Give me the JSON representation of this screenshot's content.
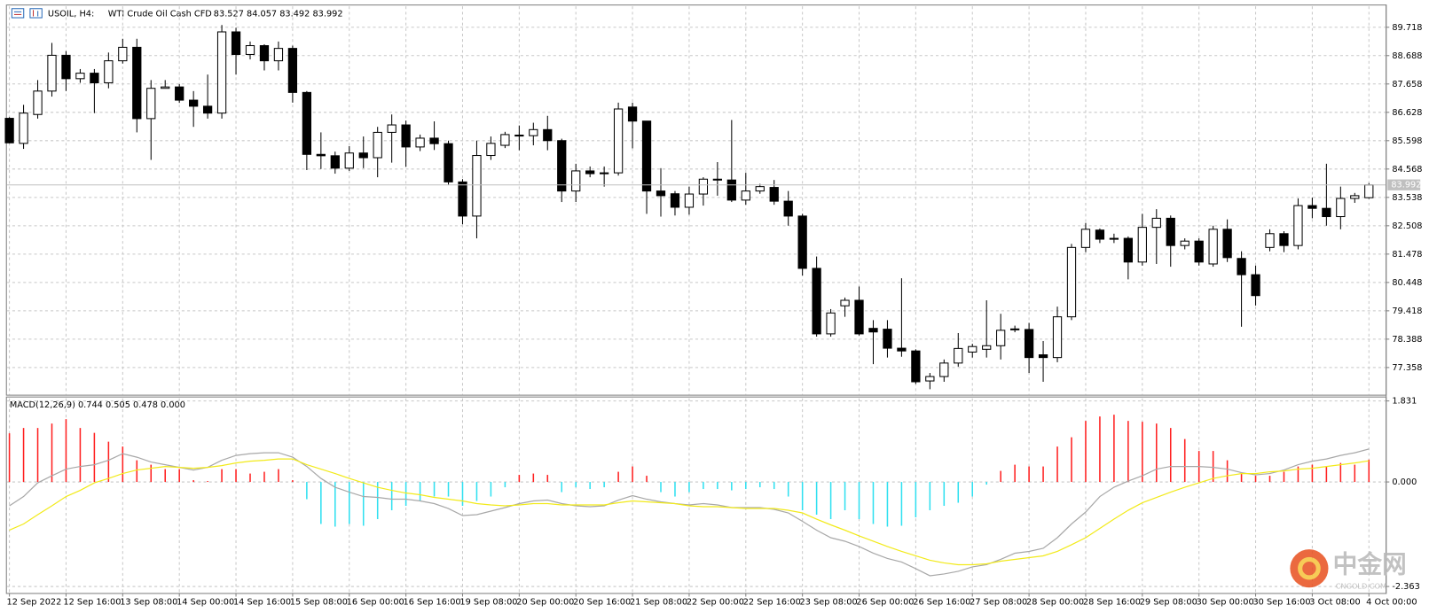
{
  "chart_data": [
    {
      "type": "candlestick",
      "title": "USOIL, H4:",
      "subtitle": "WTI Crude Oil Cash CFD",
      "ohlc_text": "83.527 84.057 83.492 83.992",
      "categories": [
        "12 Sep 2022",
        null,
        null,
        null,
        "12 Sep 16:00",
        null,
        null,
        null,
        "13 Sep 08:00",
        null,
        null,
        null,
        "14 Sep 00:00",
        null,
        null,
        null,
        "14 Sep 16:00",
        null,
        null,
        null,
        "15 Sep 08:00",
        null,
        null,
        null,
        "16 Sep 00:00",
        null,
        null,
        null,
        "16 Sep 16:00",
        null,
        null,
        null,
        "19 Sep 08:00",
        null,
        null,
        null,
        "20 Sep 00:00",
        null,
        null,
        null,
        "20 Sep 16:00",
        null,
        null,
        null,
        "21 Sep 08:00",
        null,
        null,
        null,
        "22 Sep 00:00",
        null,
        null,
        null,
        "22 Sep 16:00",
        null,
        null,
        null,
        "23 Sep 08:00",
        null,
        null,
        null,
        "26 Sep 00:00",
        null,
        null,
        null,
        "26 Sep 16:00",
        null,
        null,
        null,
        "27 Sep 08:00",
        null,
        null,
        null,
        "28 Sep 00:00",
        null,
        null,
        null,
        "28 Sep 16:00",
        null,
        null,
        null,
        "29 Sep 08:00",
        null,
        null,
        null,
        "30 Sep 00:00",
        null,
        null,
        null,
        "30 Sep 16:00",
        null,
        null,
        null,
        "3 Oct 08:00",
        null,
        null,
        null,
        "4 Oct 00:00"
      ],
      "open": [
        86.41,
        85.5,
        86.55,
        87.4,
        88.7,
        87.85,
        88.05,
        87.7,
        88.5,
        88.99,
        86.4,
        87.5,
        87.55,
        87.07,
        86.85,
        86.6,
        89.55,
        88.73,
        89.05,
        88.5,
        88.95,
        87.35,
        85.1,
        85.05,
        84.6,
        85.15,
        84.98,
        85.9,
        86.17,
        85.37,
        85.69,
        85.49,
        84.1,
        82.86,
        85.06,
        85.43,
        85.8,
        85.78,
        86.0,
        85.6,
        83.77,
        84.5,
        84.4,
        84.43,
        86.82,
        86.31,
        83.77,
        83.67,
        83.18,
        83.66,
        84.2,
        84.17,
        83.44,
        83.77,
        83.9,
        83.4,
        82.86,
        80.96,
        78.58,
        79.6,
        79.8,
        78.78,
        78.75,
        78.06,
        77.96,
        76.87,
        77.03,
        77.52,
        77.92,
        78.02,
        78.15,
        78.74,
        78.74,
        77.82,
        77.72,
        79.2,
        81.72,
        82.35,
        82.05,
        82.05,
        81.19,
        82.45,
        82.78,
        81.79,
        81.95,
        81.12,
        82.38,
        81.32,
        80.73,
        81.72,
        82.22,
        81.79,
        83.24,
        83.14,
        82.84,
        83.5,
        83.527
      ],
      "high": [
        86.45,
        86.9,
        87.8,
        89.15,
        88.85,
        88.2,
        88.2,
        88.8,
        89.3,
        89.3,
        87.8,
        87.8,
        87.65,
        87.4,
        88.0,
        89.8,
        89.7,
        89.2,
        89.1,
        89.2,
        89.05,
        87.4,
        85.9,
        85.2,
        85.4,
        85.75,
        86.1,
        86.55,
        86.33,
        85.82,
        86.3,
        85.6,
        84.2,
        85.6,
        85.75,
        85.92,
        86.15,
        86.25,
        86.5,
        85.67,
        84.76,
        84.66,
        84.66,
        86.98,
        86.98,
        86.31,
        84.6,
        83.77,
        83.93,
        84.27,
        84.82,
        86.35,
        84.43,
        84.03,
        84.17,
        83.77,
        82.94,
        81.39,
        79.48,
        79.9,
        80.3,
        79.08,
        79.08,
        80.6,
        78.02,
        77.16,
        77.65,
        78.61,
        78.22,
        79.8,
        79.31,
        78.88,
        78.98,
        78.32,
        79.57,
        81.85,
        82.61,
        82.41,
        82.22,
        82.12,
        82.94,
        83.11,
        82.88,
        82.05,
        82.05,
        82.51,
        82.74,
        81.58,
        81.06,
        82.38,
        82.31,
        83.5,
        83.53,
        84.76,
        83.93,
        83.7,
        84.057
      ],
      "low": [
        85.5,
        85.3,
        86.4,
        87.2,
        87.4,
        87.7,
        86.6,
        87.5,
        88.4,
        85.9,
        84.9,
        87.5,
        86.97,
        86.1,
        86.4,
        86.4,
        88.0,
        88.55,
        88.15,
        88.15,
        86.98,
        84.53,
        84.57,
        84.4,
        84.5,
        84.6,
        84.27,
        84.8,
        84.65,
        85.22,
        85.26,
        84.0,
        82.56,
        82.05,
        84.9,
        85.33,
        85.25,
        85.43,
        85.25,
        83.37,
        83.37,
        84.27,
        83.93,
        84.33,
        85.32,
        82.94,
        82.84,
        82.88,
        82.91,
        83.24,
        83.6,
        83.37,
        83.27,
        83.67,
        83.27,
        82.51,
        80.7,
        78.48,
        78.48,
        79.2,
        78.52,
        77.48,
        77.72,
        77.75,
        76.76,
        76.57,
        76.84,
        77.39,
        77.72,
        77.72,
        77.65,
        78.64,
        77.16,
        76.84,
        77.55,
        79.08,
        81.55,
        81.88,
        81.88,
        80.56,
        81.06,
        81.12,
        81.02,
        81.65,
        81.06,
        81.02,
        81.19,
        78.84,
        79.61,
        81.58,
        81.55,
        81.65,
        82.78,
        82.51,
        82.38,
        83.34,
        83.492
      ],
      "close": [
        85.52,
        86.6,
        87.4,
        88.7,
        87.85,
        88.05,
        87.7,
        88.5,
        88.99,
        86.4,
        87.5,
        87.55,
        87.07,
        86.85,
        86.6,
        89.55,
        88.73,
        89.05,
        88.5,
        88.95,
        87.35,
        85.1,
        85.05,
        84.6,
        85.15,
        84.98,
        85.9,
        86.17,
        85.37,
        85.69,
        85.49,
        84.1,
        82.86,
        85.06,
        85.5,
        85.82,
        85.78,
        86.0,
        85.6,
        83.77,
        84.5,
        84.4,
        84.43,
        86.75,
        86.31,
        83.77,
        83.6,
        83.18,
        83.66,
        84.2,
        84.17,
        83.44,
        83.77,
        83.93,
        83.4,
        82.86,
        80.96,
        78.58,
        79.34,
        79.8,
        78.58,
        78.65,
        78.06,
        77.96,
        76.84,
        77.03,
        77.52,
        78.05,
        78.12,
        78.15,
        78.71,
        78.76,
        77.72,
        77.72,
        79.2,
        81.72,
        82.38,
        82.02,
        82.02,
        81.19,
        82.45,
        82.78,
        81.79,
        81.95,
        81.19,
        82.38,
        81.35,
        80.73,
        79.97,
        82.22,
        81.79,
        83.24,
        83.14,
        82.84,
        83.5,
        83.6,
        83.992
      ],
      "up_color": "#ffffff",
      "down_color": "#000000",
      "last_price": 83.992,
      "last_price_color": "#c0c0c0",
      "ylim": [
        76.37,
        90.51
      ],
      "yticks": [
        89.718,
        88.688,
        87.658,
        86.628,
        85.598,
        84.568,
        83.538,
        82.508,
        81.478,
        80.448,
        79.418,
        78.388,
        77.358
      ],
      "grid": true
    },
    {
      "type": "macd",
      "title": "MACD(12,26,9) 0.744 0.505 0.478 0.000",
      "series": [
        {
          "type": "bar",
          "color": "#ff2020",
          "negative_color": "#30e0f0",
          "values": [
            1.1,
            1.22,
            1.22,
            1.32,
            1.42,
            1.22,
            1.11,
            0.91,
            0.8,
            0.49,
            0.39,
            0.29,
            0.29,
            0.04,
            0.02,
            0.29,
            0.29,
            0.19,
            0.23,
            0.29,
            0.04,
            -0.39,
            -0.95,
            -1.01,
            -0.95,
            -0.99,
            -0.84,
            -0.64,
            -0.54,
            -0.43,
            -0.33,
            -0.33,
            -0.54,
            -0.43,
            -0.33,
            -0.12,
            0.16,
            0.19,
            0.16,
            -0.23,
            -0.12,
            -0.16,
            -0.12,
            0.23,
            0.35,
            0.14,
            -0.23,
            -0.33,
            -0.23,
            -0.16,
            -0.16,
            -0.19,
            -0.16,
            -0.12,
            -0.16,
            -0.33,
            -0.64,
            -0.74,
            -0.84,
            -0.64,
            -0.84,
            -0.95,
            -1.01,
            -0.99,
            -0.8,
            -0.64,
            -0.54,
            -0.47,
            -0.33,
            -0.06,
            0.25,
            0.39,
            0.35,
            0.35,
            0.8,
            1.01,
            1.38,
            1.48,
            1.52,
            1.38,
            1.36,
            1.32,
            1.22,
            0.97,
            0.7,
            0.7,
            0.49,
            0.19,
            0.14,
            0.14,
            0.23,
            0.35,
            0.39,
            0.35,
            0.43,
            0.39,
            0.505
          ]
        },
        {
          "type": "line",
          "color": "#a8a8a8",
          "values": [
            -0.54,
            -0.33,
            -0.02,
            0.14,
            0.29,
            0.35,
            0.39,
            0.49,
            0.64,
            0.56,
            0.45,
            0.39,
            0.33,
            0.27,
            0.33,
            0.49,
            0.6,
            0.64,
            0.66,
            0.66,
            0.56,
            0.35,
            0.08,
            -0.12,
            -0.23,
            -0.33,
            -0.35,
            -0.39,
            -0.39,
            -0.43,
            -0.49,
            -0.6,
            -0.76,
            -0.74,
            -0.66,
            -0.58,
            -0.49,
            -0.43,
            -0.41,
            -0.49,
            -0.54,
            -0.56,
            -0.54,
            -0.41,
            -0.31,
            -0.39,
            -0.45,
            -0.49,
            -0.52,
            -0.49,
            -0.52,
            -0.58,
            -0.58,
            -0.58,
            -0.62,
            -0.7,
            -0.89,
            -1.09,
            -1.26,
            -1.34,
            -1.46,
            -1.61,
            -1.73,
            -1.81,
            -1.96,
            -2.12,
            -2.08,
            -2.02,
            -1.92,
            -1.87,
            -1.75,
            -1.61,
            -1.57,
            -1.5,
            -1.26,
            -0.95,
            -0.68,
            -0.33,
            -0.12,
            0.02,
            0.14,
            0.29,
            0.35,
            0.35,
            0.35,
            0.33,
            0.29,
            0.21,
            0.16,
            0.19,
            0.27,
            0.39,
            0.47,
            0.52,
            0.6,
            0.66,
            0.744
          ]
        },
        {
          "type": "line",
          "color": "#f2ea1a",
          "values": [
            -1.09,
            -0.95,
            -0.74,
            -0.54,
            -0.33,
            -0.19,
            -0.02,
            0.08,
            0.19,
            0.27,
            0.31,
            0.35,
            0.33,
            0.31,
            0.33,
            0.37,
            0.43,
            0.47,
            0.49,
            0.52,
            0.52,
            0.39,
            0.29,
            0.19,
            0.08,
            -0.02,
            -0.12,
            -0.19,
            -0.25,
            -0.29,
            -0.35,
            -0.39,
            -0.43,
            -0.49,
            -0.52,
            -0.54,
            -0.52,
            -0.49,
            -0.49,
            -0.52,
            -0.52,
            -0.52,
            -0.52,
            -0.47,
            -0.43,
            -0.45,
            -0.47,
            -0.49,
            -0.54,
            -0.56,
            -0.56,
            -0.58,
            -0.6,
            -0.6,
            -0.6,
            -0.64,
            -0.7,
            -0.84,
            -0.97,
            -1.09,
            -1.22,
            -1.34,
            -1.46,
            -1.57,
            -1.67,
            -1.77,
            -1.83,
            -1.87,
            -1.87,
            -1.85,
            -1.79,
            -1.75,
            -1.71,
            -1.67,
            -1.57,
            -1.42,
            -1.26,
            -1.05,
            -0.84,
            -0.64,
            -0.47,
            -0.35,
            -0.23,
            -0.12,
            -0.02,
            0.08,
            0.14,
            0.19,
            0.19,
            0.23,
            0.25,
            0.29,
            0.31,
            0.35,
            0.39,
            0.43,
            0.478
          ]
        }
      ],
      "ylim": [
        -2.51,
        1.91
      ],
      "yticks": [
        1.831,
        {
          "value": 0,
          "label": "0.000"
        },
        -2.363
      ],
      "grid": true
    }
  ],
  "watermark": {
    "brand": "中金网",
    "site": "CNGOLD.COM"
  }
}
